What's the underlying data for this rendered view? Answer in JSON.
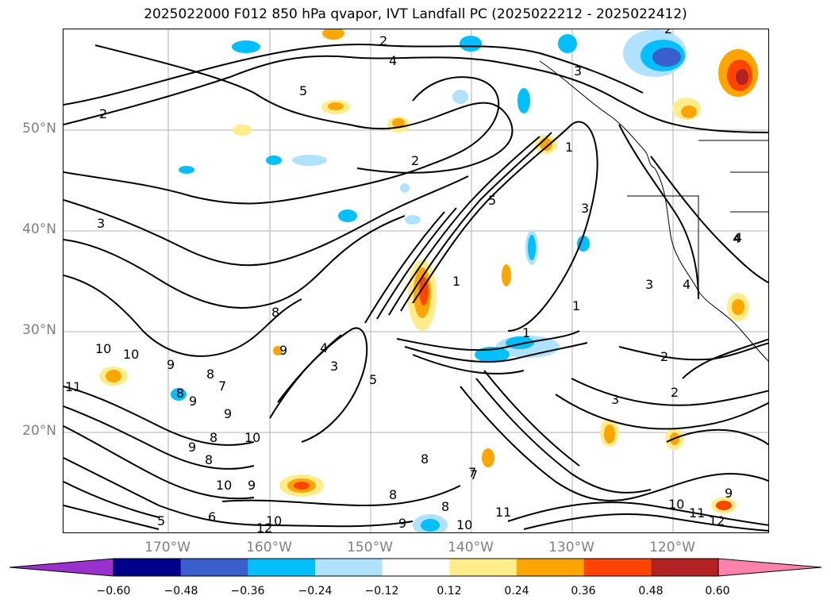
{
  "title": "2025022000 F012 850 hPa qvapor, IVT Landfall PC (2025022212 - 2025022412)",
  "lat_labels": [
    "50°N",
    "40°N",
    "30°N",
    "20°N"
  ],
  "lon_labels": [
    "170°W",
    "160°W",
    "150°W",
    "140°W",
    "130°W",
    "120°W"
  ],
  "colorbar": {
    "ticks": [
      "−0.60",
      "−0.48",
      "−0.36",
      "−0.24",
      "−0.12",
      "0.12",
      "0.24",
      "0.36",
      "0.48",
      "0.60"
    ],
    "colors": [
      "#9932cc",
      "#00008b",
      "#3a5fcd",
      "#00bfff",
      "#b0e2ff",
      "#ffffff",
      "#ffec8b",
      "#ffa500",
      "#ff4500",
      "#b22222",
      "#ff82ab"
    ]
  },
  "contour_labels": [
    "2",
    "4",
    "5",
    "2",
    "3",
    "2",
    "2",
    "3",
    "3",
    "4",
    "1",
    "5",
    "8",
    "1",
    "3",
    "4",
    "9",
    "4",
    "3",
    "5",
    "1",
    "1",
    "2",
    "3",
    "2",
    "4",
    "10",
    "10",
    "11",
    "9",
    "8",
    "9",
    "8",
    "7",
    "9",
    "8",
    "10",
    "9",
    "8",
    "10",
    "9",
    "8",
    "6",
    "5",
    "12",
    "10",
    "9",
    "8",
    "7",
    "8",
    "11",
    "10",
    "10",
    "11",
    "12",
    "9",
    "7"
  ]
}
